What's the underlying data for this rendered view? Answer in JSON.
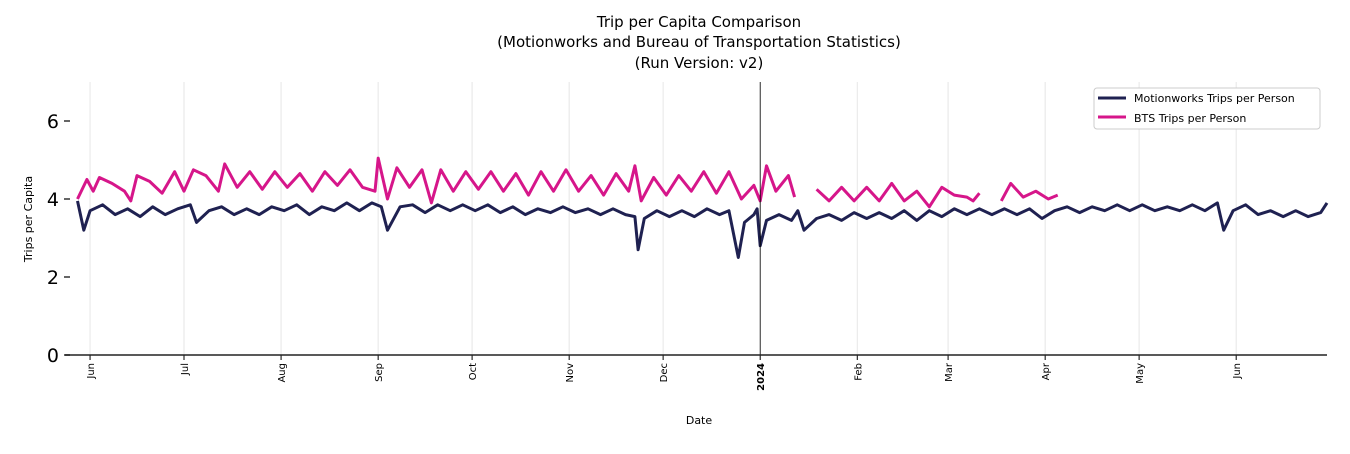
{
  "chart_data": {
    "type": "line",
    "title": [
      "Trip per Capita Comparison",
      "(Motionworks and Bureau of Transportation Statistics)",
      "(Run Version: v2)"
    ],
    "xlabel": "Date",
    "ylabel": "Trips per Capita",
    "xlim": [
      "2023-05-24",
      "2024-06-30"
    ],
    "ylim": [
      0,
      7
    ],
    "y_ticks": [
      0,
      2,
      4,
      6
    ],
    "x_ticks": [
      {
        "date": "2023-06-01",
        "label": "Jun",
        "bold": false
      },
      {
        "date": "2023-07-01",
        "label": "Jul",
        "bold": false
      },
      {
        "date": "2023-08-01",
        "label": "Aug",
        "bold": false
      },
      {
        "date": "2023-09-01",
        "label": "Sep",
        "bold": false
      },
      {
        "date": "2023-10-01",
        "label": "Oct",
        "bold": false
      },
      {
        "date": "2023-11-01",
        "label": "Nov",
        "bold": false
      },
      {
        "date": "2023-12-01",
        "label": "Dec",
        "bold": false
      },
      {
        "date": "2024-01-01",
        "label": "2024",
        "bold": true
      },
      {
        "date": "2024-02-01",
        "label": "Feb",
        "bold": false
      },
      {
        "date": "2024-03-01",
        "label": "Mar",
        "bold": false
      },
      {
        "date": "2024-04-01",
        "label": "Apr",
        "bold": false
      },
      {
        "date": "2024-05-01",
        "label": "May",
        "bold": false
      },
      {
        "date": "2024-06-01",
        "label": "Jun",
        "bold": false
      }
    ],
    "vertical_line": "2024-01-01",
    "grid": "vertical",
    "legend_position": "top-right",
    "series": [
      {
        "name": "Motionworks Trips per Person",
        "color": "#1f2151",
        "points": [
          [
            "2023-05-28",
            3.95
          ],
          [
            "2023-05-30",
            3.2
          ],
          [
            "2023-06-01",
            3.7
          ],
          [
            "2023-06-05",
            3.85
          ],
          [
            "2023-06-09",
            3.6
          ],
          [
            "2023-06-13",
            3.75
          ],
          [
            "2023-06-17",
            3.55
          ],
          [
            "2023-06-21",
            3.8
          ],
          [
            "2023-06-25",
            3.6
          ],
          [
            "2023-06-29",
            3.75
          ],
          [
            "2023-07-03",
            3.85
          ],
          [
            "2023-07-05",
            3.4
          ],
          [
            "2023-07-09",
            3.7
          ],
          [
            "2023-07-13",
            3.8
          ],
          [
            "2023-07-17",
            3.6
          ],
          [
            "2023-07-21",
            3.75
          ],
          [
            "2023-07-25",
            3.6
          ],
          [
            "2023-07-29",
            3.8
          ],
          [
            "2023-08-02",
            3.7
          ],
          [
            "2023-08-06",
            3.85
          ],
          [
            "2023-08-10",
            3.6
          ],
          [
            "2023-08-14",
            3.8
          ],
          [
            "2023-08-18",
            3.7
          ],
          [
            "2023-08-22",
            3.9
          ],
          [
            "2023-08-26",
            3.7
          ],
          [
            "2023-08-30",
            3.9
          ],
          [
            "2023-09-02",
            3.8
          ],
          [
            "2023-09-04",
            3.2
          ],
          [
            "2023-09-08",
            3.8
          ],
          [
            "2023-09-12",
            3.85
          ],
          [
            "2023-09-16",
            3.65
          ],
          [
            "2023-09-20",
            3.85
          ],
          [
            "2023-09-24",
            3.7
          ],
          [
            "2023-09-28",
            3.85
          ],
          [
            "2023-10-02",
            3.7
          ],
          [
            "2023-10-06",
            3.85
          ],
          [
            "2023-10-10",
            3.65
          ],
          [
            "2023-10-14",
            3.8
          ],
          [
            "2023-10-18",
            3.6
          ],
          [
            "2023-10-22",
            3.75
          ],
          [
            "2023-10-26",
            3.65
          ],
          [
            "2023-10-30",
            3.8
          ],
          [
            "2023-11-03",
            3.65
          ],
          [
            "2023-11-07",
            3.75
          ],
          [
            "2023-11-11",
            3.6
          ],
          [
            "2023-11-15",
            3.75
          ],
          [
            "2023-11-19",
            3.6
          ],
          [
            "2023-11-22",
            3.55
          ],
          [
            "2023-11-23",
            2.7
          ],
          [
            "2023-11-25",
            3.5
          ],
          [
            "2023-11-29",
            3.7
          ],
          [
            "2023-12-03",
            3.55
          ],
          [
            "2023-12-07",
            3.7
          ],
          [
            "2023-12-11",
            3.55
          ],
          [
            "2023-12-15",
            3.75
          ],
          [
            "2023-12-19",
            3.6
          ],
          [
            "2023-12-22",
            3.7
          ],
          [
            "2023-12-25",
            2.5
          ],
          [
            "2023-12-27",
            3.4
          ],
          [
            "2023-12-30",
            3.6
          ],
          [
            "2023-12-31",
            3.75
          ],
          [
            "2024-01-01",
            2.8
          ],
          [
            "2024-01-03",
            3.45
          ],
          [
            "2024-01-07",
            3.6
          ],
          [
            "2024-01-11",
            3.45
          ],
          [
            "2024-01-13",
            3.7
          ],
          [
            "2024-01-15",
            3.2
          ],
          [
            "2024-01-19",
            3.5
          ],
          [
            "2024-01-23",
            3.6
          ],
          [
            "2024-01-27",
            3.45
          ],
          [
            "2024-01-31",
            3.65
          ],
          [
            "2024-02-04",
            3.5
          ],
          [
            "2024-02-08",
            3.65
          ],
          [
            "2024-02-12",
            3.5
          ],
          [
            "2024-02-16",
            3.7
          ],
          [
            "2024-02-20",
            3.45
          ],
          [
            "2024-02-24",
            3.7
          ],
          [
            "2024-02-28",
            3.55
          ],
          [
            "2024-03-03",
            3.75
          ],
          [
            "2024-03-07",
            3.6
          ],
          [
            "2024-03-11",
            3.75
          ],
          [
            "2024-03-15",
            3.6
          ],
          [
            "2024-03-19",
            3.75
          ],
          [
            "2024-03-23",
            3.6
          ],
          [
            "2024-03-27",
            3.75
          ],
          [
            "2024-03-31",
            3.5
          ],
          [
            "2024-04-04",
            3.7
          ],
          [
            "2024-04-08",
            3.8
          ],
          [
            "2024-04-12",
            3.65
          ],
          [
            "2024-04-16",
            3.8
          ],
          [
            "2024-04-20",
            3.7
          ],
          [
            "2024-04-24",
            3.85
          ],
          [
            "2024-04-28",
            3.7
          ],
          [
            "2024-05-02",
            3.85
          ],
          [
            "2024-05-06",
            3.7
          ],
          [
            "2024-05-10",
            3.8
          ],
          [
            "2024-05-14",
            3.7
          ],
          [
            "2024-05-18",
            3.85
          ],
          [
            "2024-05-22",
            3.7
          ],
          [
            "2024-05-26",
            3.9
          ],
          [
            "2024-05-28",
            3.2
          ],
          [
            "2024-05-31",
            3.7
          ],
          [
            "2024-06-04",
            3.85
          ],
          [
            "2024-06-08",
            3.6
          ],
          [
            "2024-06-12",
            3.7
          ],
          [
            "2024-06-16",
            3.55
          ],
          [
            "2024-06-20",
            3.7
          ],
          [
            "2024-06-24",
            3.55
          ],
          [
            "2024-06-28",
            3.65
          ],
          [
            "2024-06-30",
            3.9
          ]
        ]
      },
      {
        "name": "BTS Trips per Person",
        "color": "#d6168a",
        "points": [
          [
            "2023-05-28",
            4.0
          ],
          [
            "2023-05-31",
            4.5
          ],
          [
            "2023-06-02",
            4.2
          ],
          [
            "2023-06-04",
            4.55
          ],
          [
            "2023-06-08",
            4.4
          ],
          [
            "2023-06-12",
            4.2
          ],
          [
            "2023-06-14",
            3.95
          ],
          [
            "2023-06-16",
            4.6
          ],
          [
            "2023-06-20",
            4.45
          ],
          [
            "2023-06-24",
            4.15
          ],
          [
            "2023-06-28",
            4.7
          ],
          [
            "2023-07-01",
            4.2
          ],
          [
            "2023-07-04",
            4.75
          ],
          [
            "2023-07-08",
            4.6
          ],
          [
            "2023-07-12",
            4.2
          ],
          [
            "2023-07-14",
            4.9
          ],
          [
            "2023-07-18",
            4.3
          ],
          [
            "2023-07-22",
            4.7
          ],
          [
            "2023-07-26",
            4.25
          ],
          [
            "2023-07-30",
            4.7
          ],
          [
            "2023-08-03",
            4.3
          ],
          [
            "2023-08-07",
            4.65
          ],
          [
            "2023-08-11",
            4.2
          ],
          [
            "2023-08-15",
            4.7
          ],
          [
            "2023-08-19",
            4.35
          ],
          [
            "2023-08-23",
            4.75
          ],
          [
            "2023-08-27",
            4.3
          ],
          [
            "2023-08-31",
            4.2
          ],
          [
            "2023-09-01",
            5.05
          ],
          [
            "2023-09-04",
            4.0
          ],
          [
            "2023-09-07",
            4.8
          ],
          [
            "2023-09-11",
            4.3
          ],
          [
            "2023-09-15",
            4.75
          ],
          [
            "2023-09-18",
            3.9
          ],
          [
            "2023-09-21",
            4.75
          ],
          [
            "2023-09-25",
            4.2
          ],
          [
            "2023-09-29",
            4.7
          ],
          [
            "2023-10-03",
            4.25
          ],
          [
            "2023-10-07",
            4.7
          ],
          [
            "2023-10-11",
            4.2
          ],
          [
            "2023-10-15",
            4.65
          ],
          [
            "2023-10-19",
            4.1
          ],
          [
            "2023-10-23",
            4.7
          ],
          [
            "2023-10-27",
            4.2
          ],
          [
            "2023-10-31",
            4.75
          ],
          [
            "2023-11-04",
            4.2
          ],
          [
            "2023-11-08",
            4.6
          ],
          [
            "2023-11-12",
            4.1
          ],
          [
            "2023-11-16",
            4.65
          ],
          [
            "2023-11-20",
            4.2
          ],
          [
            "2023-11-22",
            4.85
          ],
          [
            "2023-11-24",
            3.95
          ],
          [
            "2023-11-28",
            4.55
          ],
          [
            "2023-12-02",
            4.1
          ],
          [
            "2023-12-06",
            4.6
          ],
          [
            "2023-12-10",
            4.2
          ],
          [
            "2023-12-14",
            4.7
          ],
          [
            "2023-12-18",
            4.15
          ],
          [
            "2023-12-22",
            4.7
          ],
          [
            "2023-12-26",
            4.0
          ],
          [
            "2023-12-30",
            4.35
          ],
          [
            "2024-01-01",
            3.95
          ],
          [
            "2024-01-03",
            4.85
          ],
          [
            "2024-01-06",
            4.2
          ],
          [
            "2024-01-10",
            4.6
          ],
          [
            "2024-01-12",
            4.05
          ],
          [
            "2024-01-15",
            null
          ],
          [
            "2024-01-19",
            4.25
          ],
          [
            "2024-01-23",
            3.95
          ],
          [
            "2024-01-27",
            4.3
          ],
          [
            "2024-01-31",
            3.95
          ],
          [
            "2024-02-04",
            4.3
          ],
          [
            "2024-02-08",
            3.95
          ],
          [
            "2024-02-12",
            4.4
          ],
          [
            "2024-02-16",
            3.95
          ],
          [
            "2024-02-20",
            4.2
          ],
          [
            "2024-02-24",
            3.8
          ],
          [
            "2024-02-28",
            4.3
          ],
          [
            "2024-03-03",
            4.1
          ],
          [
            "2024-03-07",
            4.05
          ],
          [
            "2024-03-09",
            3.95
          ],
          [
            "2024-03-11",
            4.15
          ],
          [
            "2024-03-14",
            null
          ],
          [
            "2024-03-18",
            3.95
          ],
          [
            "2024-03-21",
            4.4
          ],
          [
            "2024-03-25",
            4.05
          ],
          [
            "2024-03-29",
            4.2
          ],
          [
            "2024-04-02",
            4.0
          ],
          [
            "2024-04-05",
            4.1
          ]
        ]
      }
    ]
  }
}
